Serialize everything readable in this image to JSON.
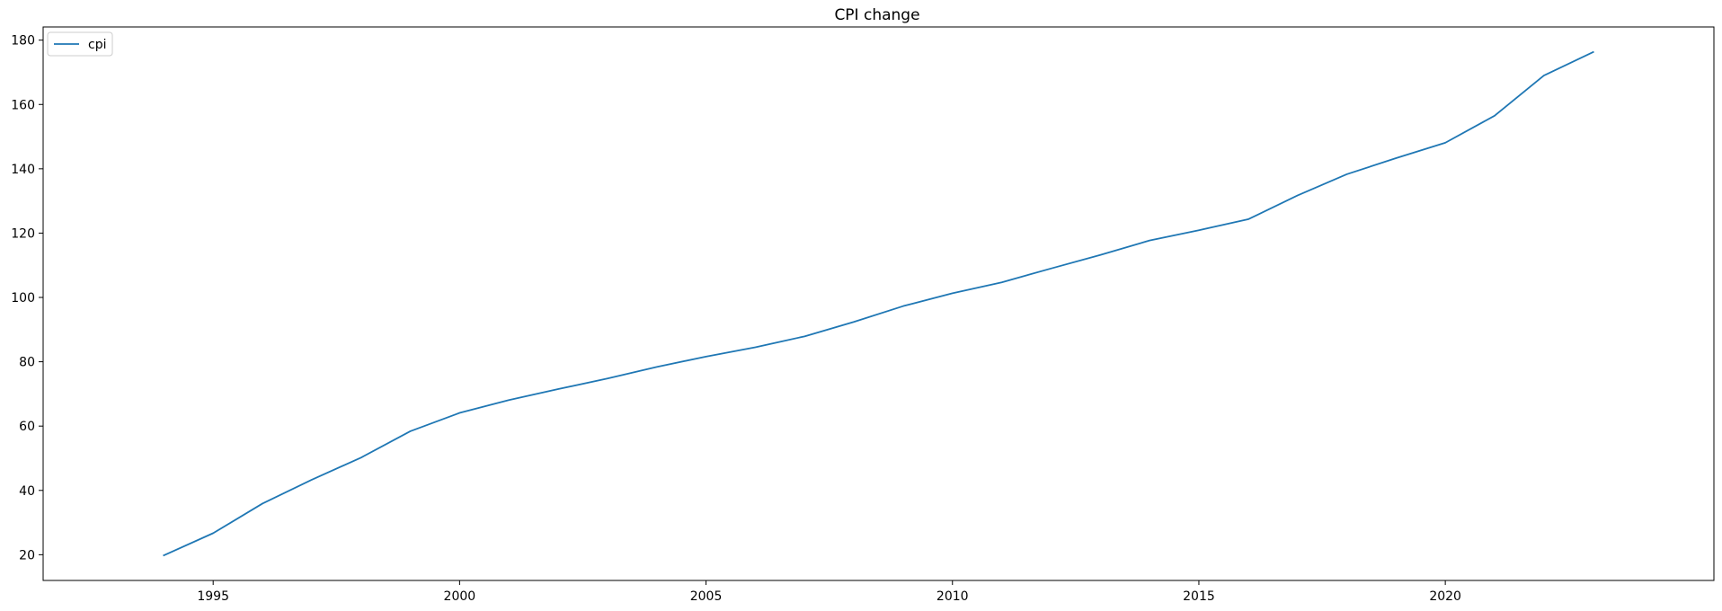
{
  "chart_data": {
    "type": "line",
    "title": "CPI change",
    "xlabel": "",
    "ylabel": "",
    "x": [
      1994,
      1995,
      1996,
      1997,
      1998,
      1999,
      2000,
      2001,
      2002,
      2003,
      2004,
      2005,
      2006,
      2007,
      2008,
      2009,
      2010,
      2011,
      2012,
      2013,
      2014,
      2015,
      2016,
      2017,
      2018,
      2019,
      2020,
      2021,
      2022,
      2023
    ],
    "series": [
      {
        "name": "cpi",
        "color": "#1f77b4",
        "values": [
          19.8,
          26.7,
          35.9,
          43.3,
          50.2,
          58.4,
          64.1,
          68.1,
          71.5,
          74.8,
          78.4,
          81.6,
          84.5,
          87.9,
          92.4,
          97.3,
          101.3,
          104.7,
          109.0,
          113.2,
          117.7,
          120.9,
          124.3,
          131.7,
          138.3,
          143.3,
          148.1,
          156.5,
          169.0,
          176.3
        ]
      }
    ],
    "xlim": [
      1991.55,
      2025.45
    ],
    "ylim": [
      12.0,
      184.1
    ],
    "xticks": [
      1995,
      2000,
      2005,
      2010,
      2015,
      2020
    ],
    "yticks": [
      20,
      40,
      60,
      80,
      100,
      120,
      140,
      160,
      180
    ],
    "grid": false,
    "legend_position": "upper-left"
  }
}
